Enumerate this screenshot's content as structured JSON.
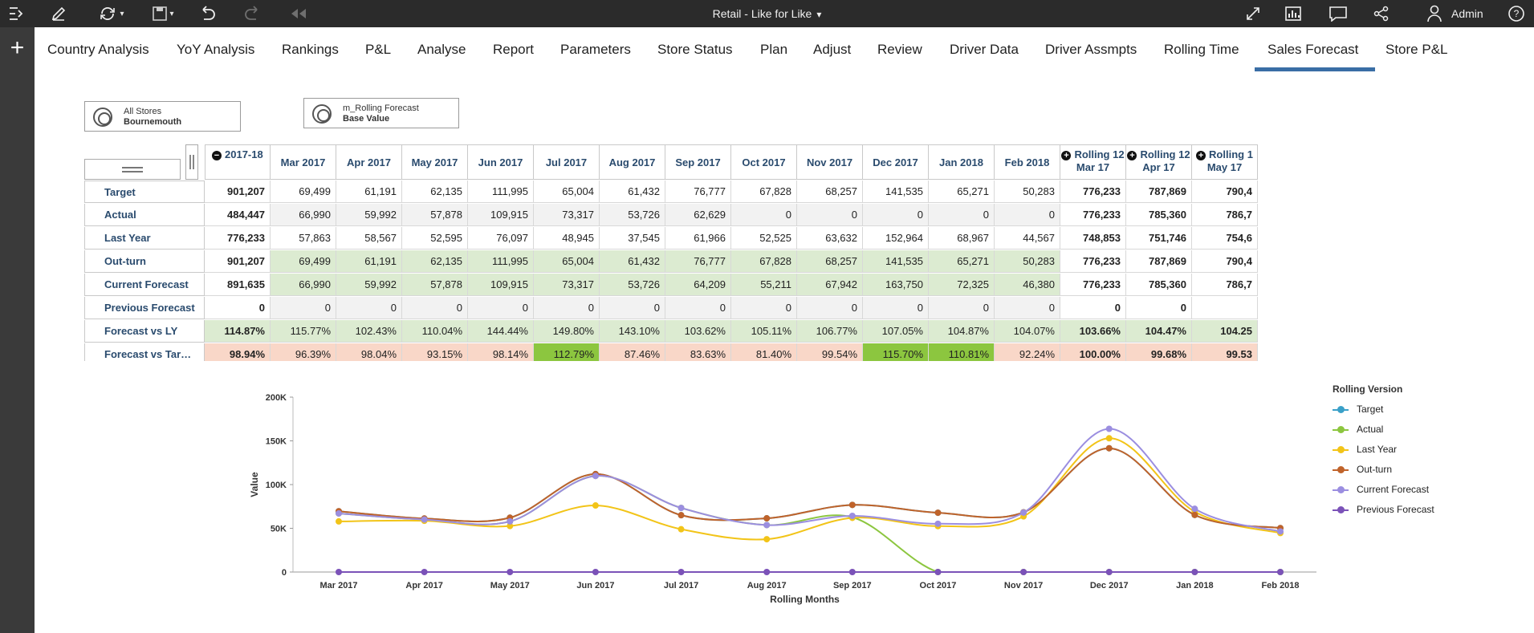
{
  "toolbar": {
    "title": "Retail - Like for Like",
    "user": "Admin"
  },
  "tabs": [
    {
      "label": "Country Analysis"
    },
    {
      "label": "YoY Analysis"
    },
    {
      "label": "Rankings"
    },
    {
      "label": "P&L"
    },
    {
      "label": "Analyse"
    },
    {
      "label": "Report"
    },
    {
      "label": "Parameters"
    },
    {
      "label": "Store Status"
    },
    {
      "label": "Plan"
    },
    {
      "label": "Adjust"
    },
    {
      "label": "Review"
    },
    {
      "label": "Driver Data"
    },
    {
      "label": "Driver Assmpts"
    },
    {
      "label": "Rolling Time"
    },
    {
      "label": "Sales Forecast"
    },
    {
      "label": "Store P&L"
    }
  ],
  "active_tab": "Sales Forecast",
  "selectors": {
    "store": {
      "line1": "All Stores",
      "line2": "Bournemouth"
    },
    "version": {
      "line1": "m_Rolling Forecast",
      "line2": "Base Value"
    }
  },
  "grid": {
    "columns": [
      {
        "label": "2017-18",
        "sub": ""
      },
      {
        "label": "Mar 2017",
        "sub": ""
      },
      {
        "label": "Apr 2017",
        "sub": ""
      },
      {
        "label": "May 2017",
        "sub": ""
      },
      {
        "label": "Jun 2017",
        "sub": ""
      },
      {
        "label": "Jul 2017",
        "sub": ""
      },
      {
        "label": "Aug 2017",
        "sub": ""
      },
      {
        "label": "Sep 2017",
        "sub": ""
      },
      {
        "label": "Oct 2017",
        "sub": ""
      },
      {
        "label": "Nov 2017",
        "sub": ""
      },
      {
        "label": "Dec 2017",
        "sub": ""
      },
      {
        "label": "Jan 2018",
        "sub": ""
      },
      {
        "label": "Feb 2018",
        "sub": ""
      },
      {
        "label": "Rolling 12",
        "sub": "Mar 17"
      },
      {
        "label": "Rolling 12",
        "sub": "Apr 17"
      },
      {
        "label": "Rolling 1",
        "sub": "May 17"
      }
    ],
    "rows": [
      {
        "label": "Target",
        "values": [
          "901,207",
          "69,499",
          "61,191",
          "62,135",
          "111,995",
          "65,004",
          "61,432",
          "76,777",
          "67,828",
          "68,257",
          "141,535",
          "65,271",
          "50,283",
          "776,233",
          "787,869",
          "790,4"
        ]
      },
      {
        "label": "Actual",
        "values": [
          "484,447",
          "66,990",
          "59,992",
          "57,878",
          "109,915",
          "73,317",
          "53,726",
          "62,629",
          "0",
          "0",
          "0",
          "0",
          "0",
          "776,233",
          "785,360",
          "786,7"
        ]
      },
      {
        "label": "Last Year",
        "values": [
          "776,233",
          "57,863",
          "58,567",
          "52,595",
          "76,097",
          "48,945",
          "37,545",
          "61,966",
          "52,525",
          "63,632",
          "152,964",
          "68,967",
          "44,567",
          "748,853",
          "751,746",
          "754,6"
        ]
      },
      {
        "label": "Out-turn",
        "values": [
          "901,207",
          "69,499",
          "61,191",
          "62,135",
          "111,995",
          "65,004",
          "61,432",
          "76,777",
          "67,828",
          "68,257",
          "141,535",
          "65,271",
          "50,283",
          "776,233",
          "787,869",
          "790,4"
        ]
      },
      {
        "label": "Current Forecast",
        "values": [
          "891,635",
          "66,990",
          "59,992",
          "57,878",
          "109,915",
          "73,317",
          "53,726",
          "64,209",
          "55,211",
          "67,942",
          "163,750",
          "72,325",
          "46,380",
          "776,233",
          "785,360",
          "786,7"
        ]
      },
      {
        "label": "Previous Forecast",
        "values": [
          "0",
          "0",
          "0",
          "0",
          "0",
          "0",
          "0",
          "0",
          "0",
          "0",
          "0",
          "0",
          "0",
          "0",
          "0",
          ""
        ]
      },
      {
        "label": "Forecast vs LY",
        "values": [
          "114.87%",
          "115.77%",
          "102.43%",
          "110.04%",
          "144.44%",
          "149.80%",
          "143.10%",
          "103.62%",
          "105.11%",
          "106.77%",
          "107.05%",
          "104.87%",
          "104.07%",
          "103.66%",
          "104.47%",
          "104.25"
        ]
      },
      {
        "label": "Forecast vs Tar…",
        "values": [
          "98.94%",
          "96.39%",
          "98.04%",
          "93.15%",
          "98.14%",
          "112.79%",
          "87.46%",
          "83.63%",
          "81.40%",
          "99.54%",
          "115.70%",
          "110.81%",
          "92.24%",
          "100.00%",
          "99.68%",
          "99.53"
        ]
      }
    ]
  },
  "chart_data": {
    "type": "line",
    "title": "",
    "xlabel": "Rolling Months",
    "ylabel": "Value",
    "ylim": [
      0,
      200000
    ],
    "yticks": [
      "0",
      "50K",
      "100K",
      "150K",
      "200K"
    ],
    "categories": [
      "Mar 2017",
      "Apr 2017",
      "May 2017",
      "Jun 2017",
      "Jul 2017",
      "Aug 2017",
      "Sep 2017",
      "Oct 2017",
      "Nov 2017",
      "Dec 2017",
      "Jan 2018",
      "Feb 2018"
    ],
    "legend_title": "Rolling Version",
    "legend_position": "right",
    "series": [
      {
        "name": "Target",
        "color": "#3aa0c8",
        "values": [
          69499,
          61191,
          62135,
          111995,
          65004,
          61432,
          76777,
          67828,
          68257,
          141535,
          65271,
          50283
        ]
      },
      {
        "name": "Actual",
        "color": "#8cc63f",
        "values": [
          66990,
          59992,
          57878,
          109915,
          73317,
          53726,
          62629,
          0,
          0,
          0,
          0,
          0
        ]
      },
      {
        "name": "Last Year",
        "color": "#f2c418",
        "values": [
          57863,
          58567,
          52595,
          76097,
          48945,
          37545,
          61966,
          52525,
          63632,
          152964,
          68967,
          44567
        ]
      },
      {
        "name": "Out-turn",
        "color": "#c0632a",
        "values": [
          69499,
          61191,
          62135,
          111995,
          65004,
          61432,
          76777,
          67828,
          68257,
          141535,
          65271,
          50283
        ]
      },
      {
        "name": "Current Forecast",
        "color": "#9b8ee0",
        "values": [
          66990,
          59992,
          57878,
          109915,
          73317,
          53726,
          64209,
          55211,
          67942,
          163750,
          72325,
          46380
        ]
      },
      {
        "name": "Previous Forecast",
        "color": "#7b52b8",
        "values": [
          0,
          0,
          0,
          0,
          0,
          0,
          0,
          0,
          0,
          0,
          0,
          0
        ]
      }
    ]
  }
}
